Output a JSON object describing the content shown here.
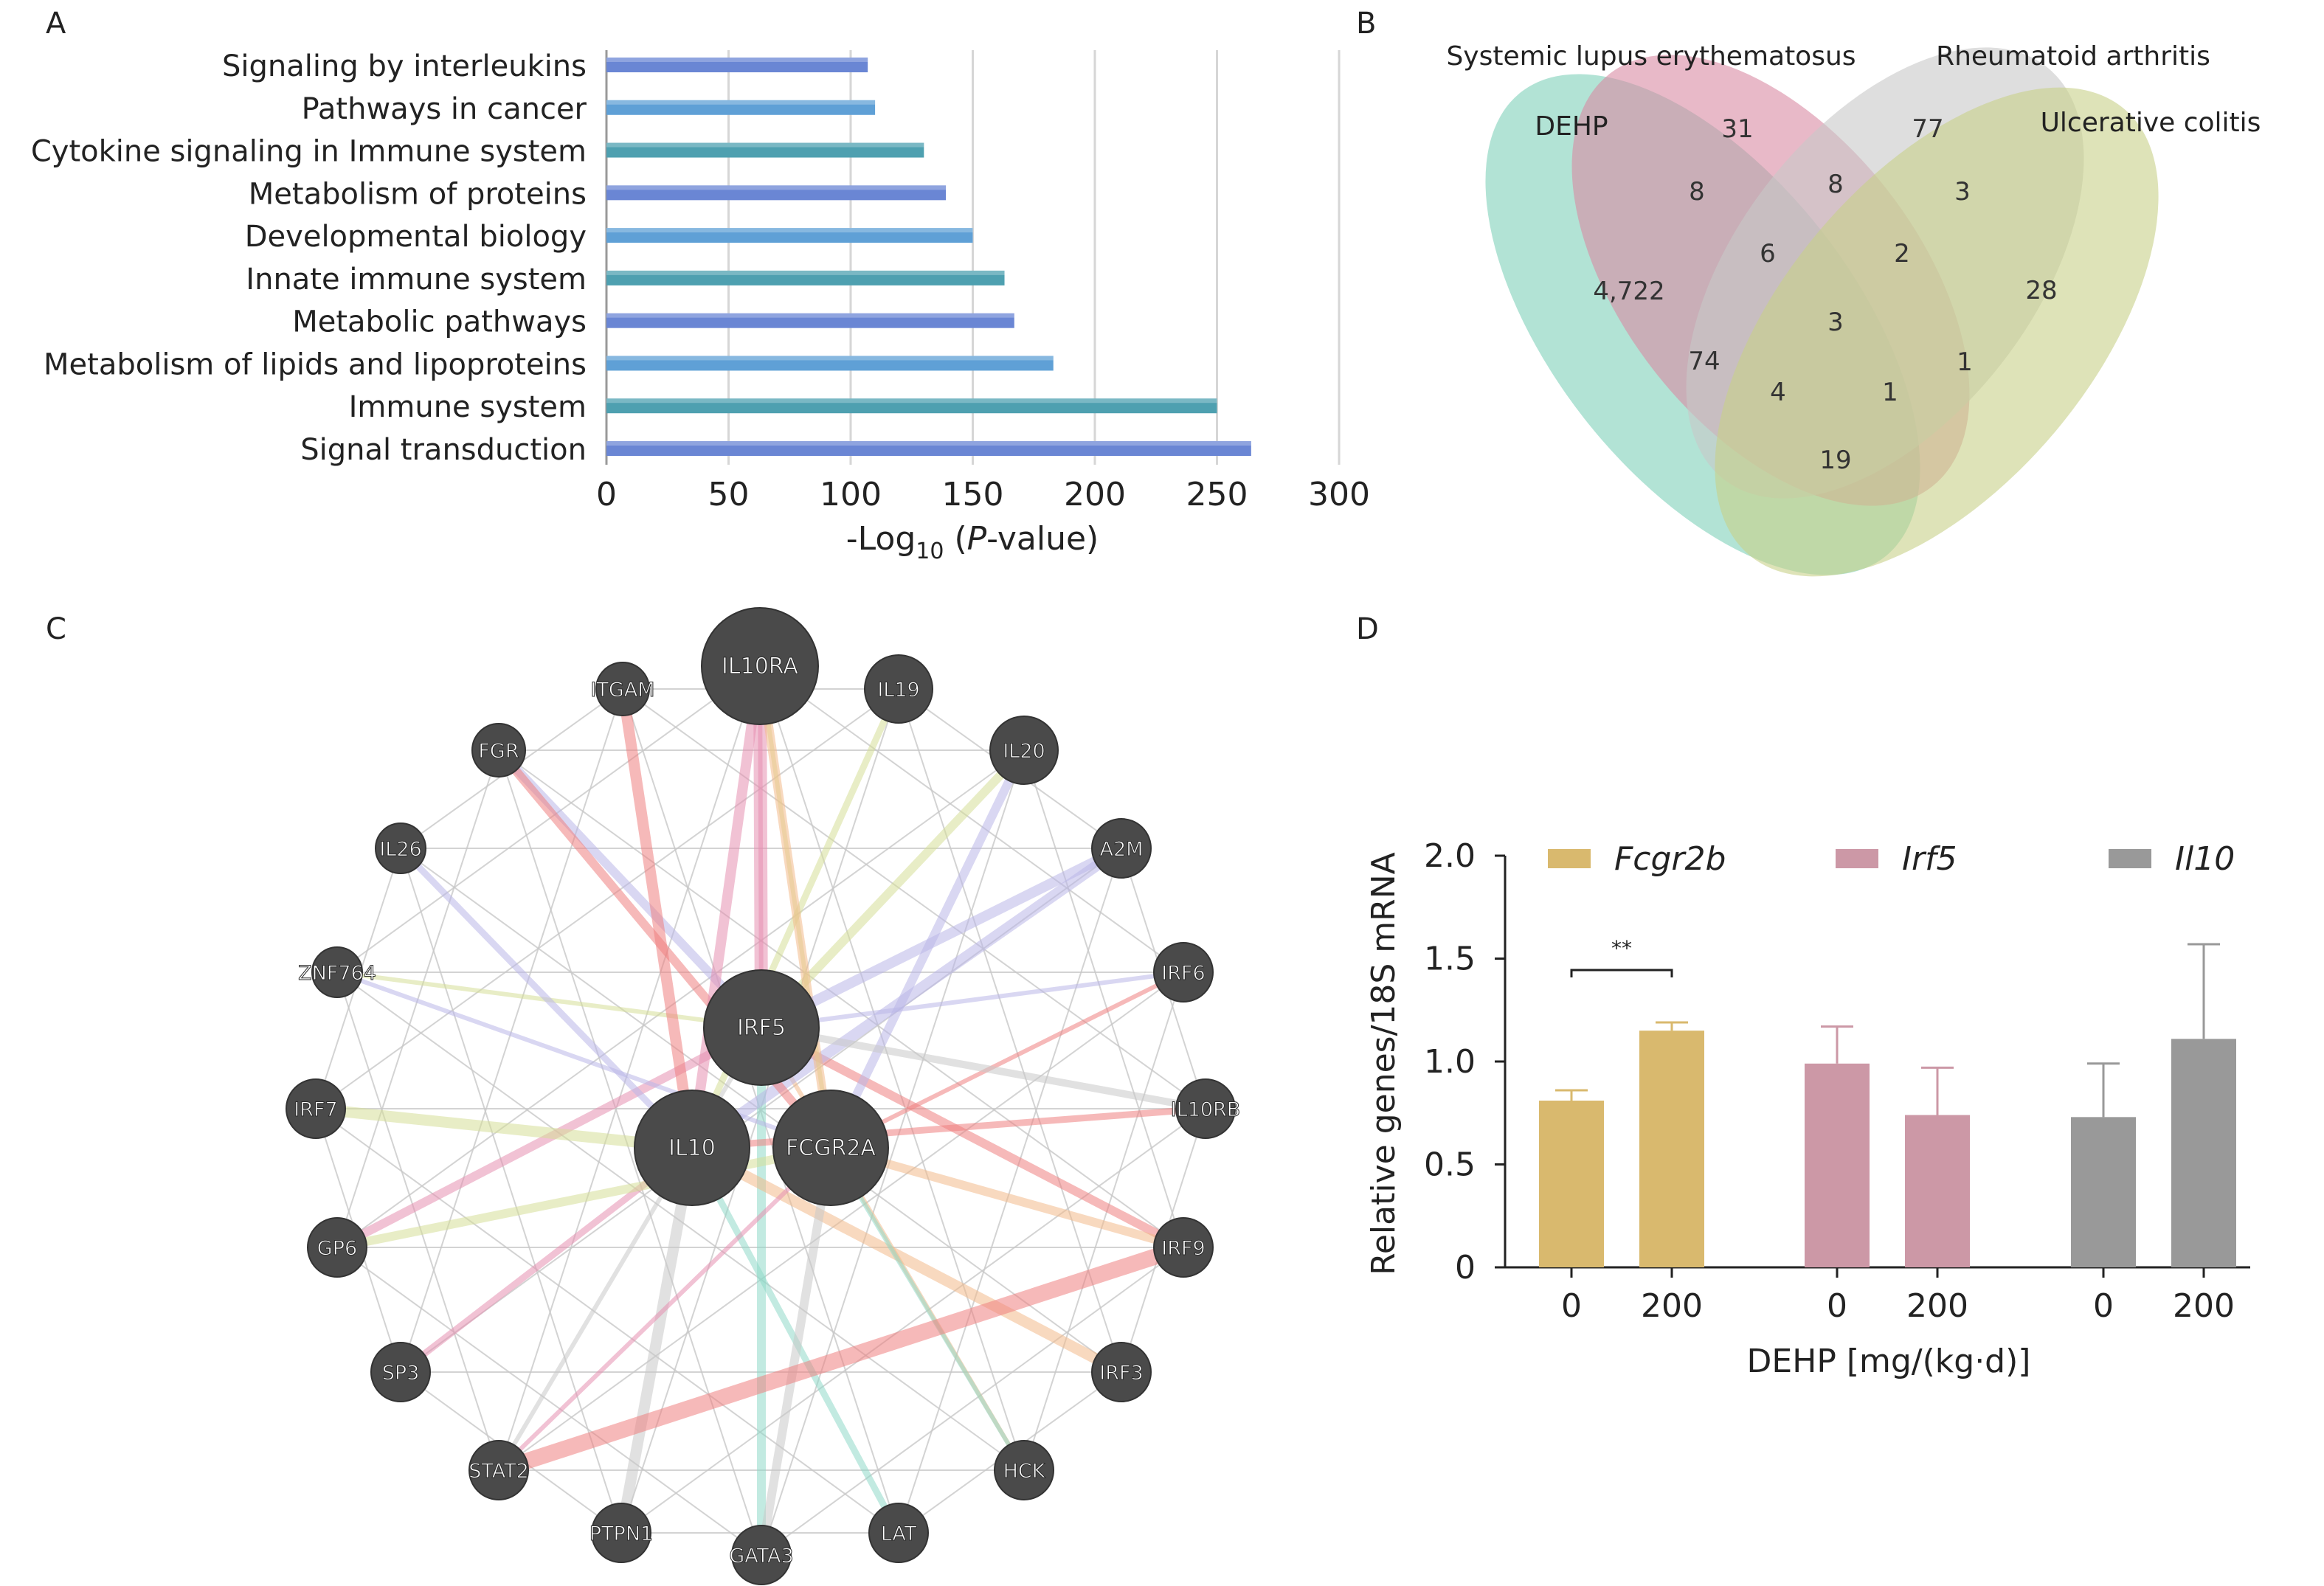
{
  "panels": {
    "A": {
      "label": "A",
      "xlabel_main": "-Log",
      "xlabel_sub": "10",
      "xlabel_open": " (",
      "xlabel_italic": "P",
      "xlabel_rest": "-value)"
    },
    "B": {
      "label": "B"
    },
    "C": {
      "label": "C"
    },
    "D": {
      "label": "D",
      "ylabel": "Relative genes/18S mRNA",
      "xlabel": "DEHP [mg/(kg·d)]",
      "sig_label": "**"
    }
  },
  "chart_data": [
    {
      "panel": "A",
      "type": "bar",
      "orientation": "horizontal",
      "categories": [
        "Signaling by interleukins",
        "Pathways in cancer",
        "Cytokine signaling in Immune system",
        "Metabolism of proteins",
        "Developmental biology",
        "Innate immune system",
        "Metabolic pathways",
        "Metabolism of lipids and lipoproteins",
        "Immune system",
        "Signal transduction"
      ],
      "values": [
        107,
        110,
        130,
        139,
        150,
        163,
        167,
        183,
        250,
        264
      ],
      "xlim": [
        0,
        300
      ],
      "xticks": [
        "0",
        "50",
        "100",
        "150",
        "200",
        "250",
        "300"
      ],
      "grid": true,
      "colors": [
        "#6A86D4",
        "#5FA0D6",
        "#4EA0B0"
      ]
    },
    {
      "panel": "B",
      "type": "venn",
      "sets": [
        {
          "name": "DEHP",
          "color": "#7FD1B9"
        },
        {
          "name": "Systemic lupus erythematosus",
          "color": "#D98BA3"
        },
        {
          "name": "Rheumatoid arthritis",
          "color": "#C8C8C8"
        },
        {
          "name": "Ulcerative colitis",
          "color": "#C8D088"
        }
      ],
      "region_values": [
        "31",
        "77",
        "8",
        "8",
        "3",
        "4,722",
        "6",
        "2",
        "28",
        "3",
        "74",
        "1",
        "4",
        "1",
        "19"
      ]
    },
    {
      "panel": "C",
      "type": "network",
      "nodes": [
        "IL10RA",
        "IL19",
        "IL20",
        "A2M",
        "IRF6",
        "IL10RB",
        "IRF9",
        "IRF3",
        "HCK",
        "LAT",
        "GATA3",
        "PTPN1",
        "STAT2",
        "SP3",
        "GP6",
        "IRF7",
        "ZNF764",
        "IL26",
        "FGR",
        "ITGAM",
        "IRF5",
        "IL10",
        "FCGR2A"
      ],
      "edge_colors": [
        "#E58FB0",
        "#F2B98A",
        "#D6DE98",
        "#8FD9C8",
        "#B9B6E8",
        "#C8C8C8",
        "#EE8080"
      ]
    },
    {
      "panel": "D",
      "type": "bar",
      "series": [
        {
          "name": "Fcgr2b",
          "color": "#D9B96E",
          "values": [
            0.81,
            1.15
          ],
          "errors": [
            0.05,
            0.04
          ]
        },
        {
          "name": "Irf5",
          "color": "#CC98A6",
          "values": [
            0.99,
            0.74
          ],
          "errors": [
            0.18,
            0.23
          ]
        },
        {
          "name": "Il10",
          "color": "#999999",
          "values": [
            0.73,
            1.11
          ],
          "errors": [
            0.26,
            0.46
          ]
        }
      ],
      "categories": [
        "0",
        "200"
      ],
      "ylim": [
        0,
        2.0
      ],
      "yticks": [
        "0",
        "0.5",
        "1.0",
        "1.5",
        "2.0"
      ],
      "significance": {
        "series": "Fcgr2b",
        "label": "**"
      }
    }
  ]
}
